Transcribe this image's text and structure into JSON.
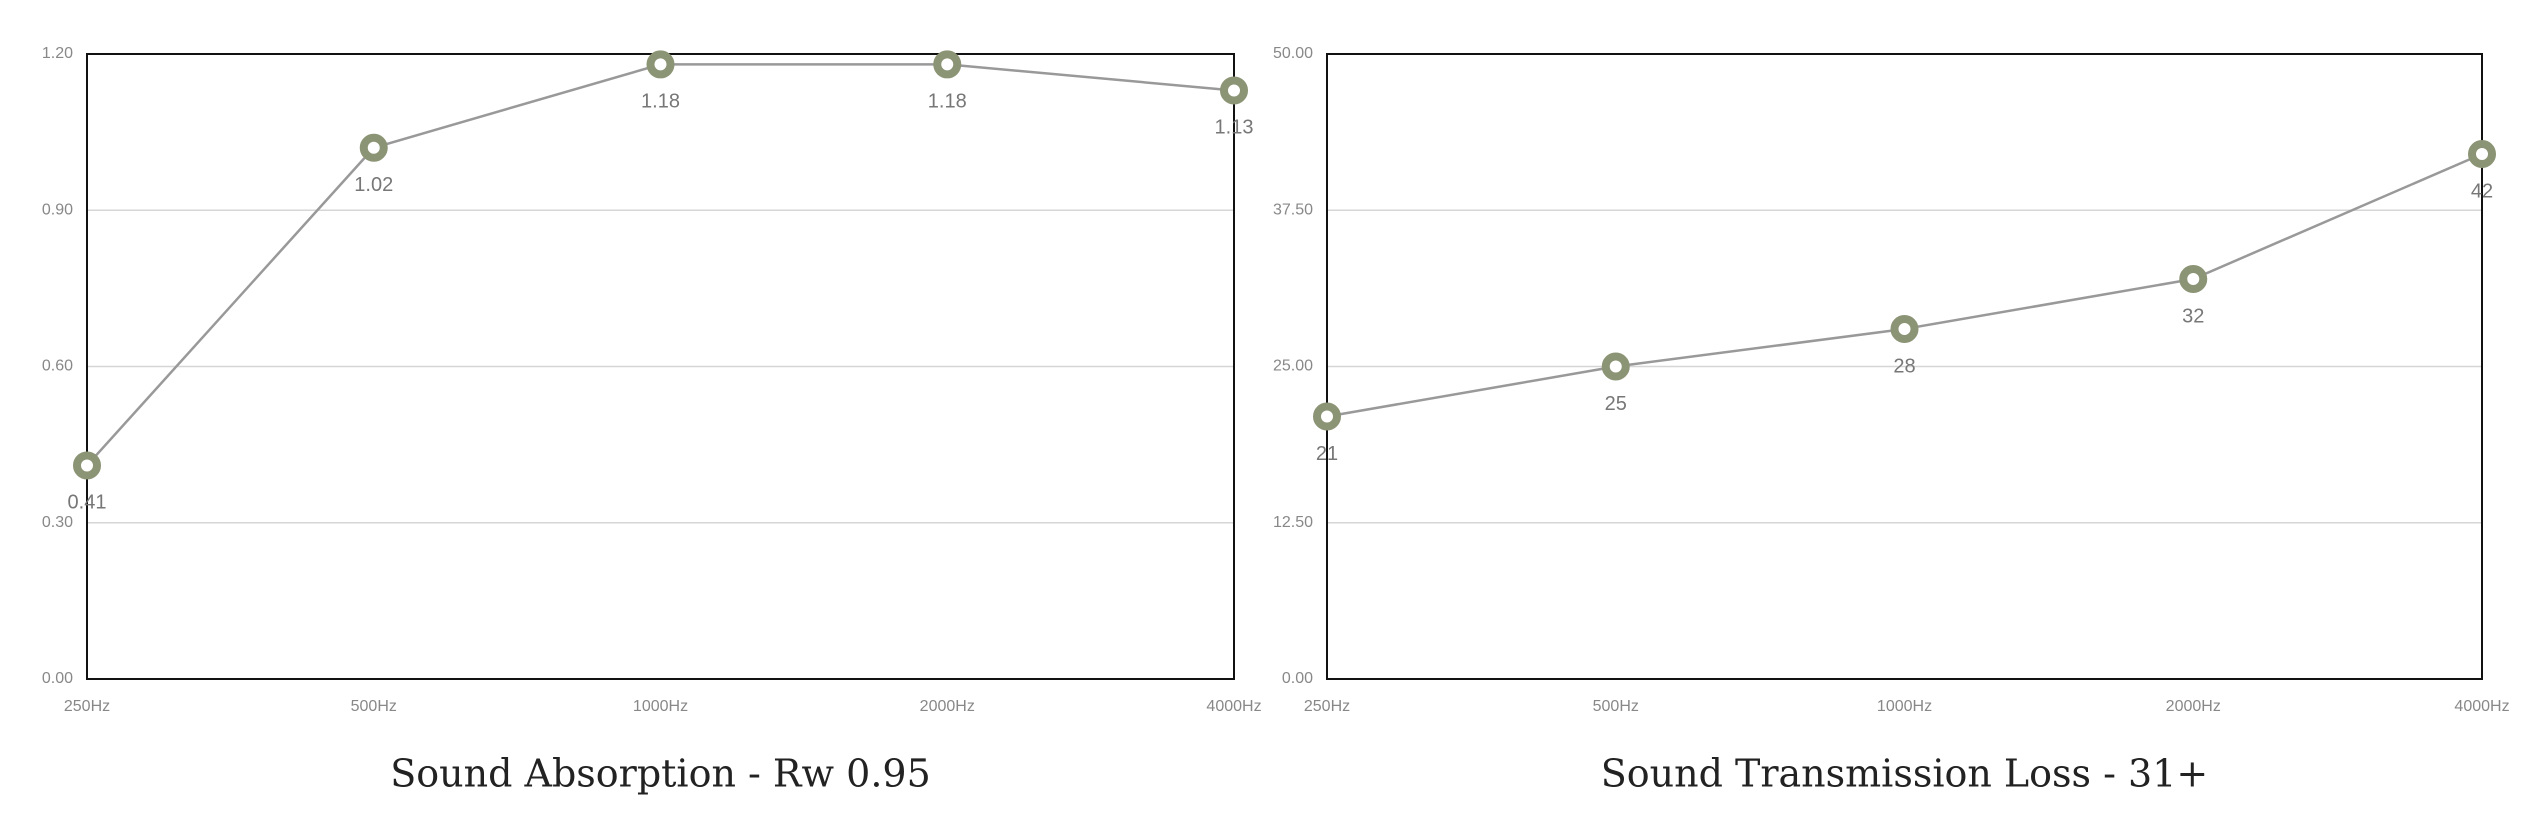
{
  "chart_data": [
    {
      "type": "line",
      "title": "Sound Absorption - Rw 0.95",
      "categories": [
        "250Hz",
        "500Hz",
        "1000Hz",
        "2000Hz",
        "4000Hz"
      ],
      "values": [
        0.41,
        1.02,
        1.18,
        1.18,
        1.13
      ],
      "color": "#8b9474",
      "line_color": "#999999",
      "ylim": [
        0,
        1.2
      ],
      "yticks": [
        {
          "value": 0,
          "label": "0.00"
        },
        {
          "value": 0.3,
          "label": "0.30"
        },
        {
          "value": 0.6,
          "label": "0.60"
        },
        {
          "value": 0.9,
          "label": "0.90"
        },
        {
          "value": 1.2,
          "label": "1.20"
        }
      ],
      "grid": true
    },
    {
      "type": "line",
      "title": "Sound Transmission Loss - 31+",
      "categories": [
        "250Hz",
        "500Hz",
        "1000Hz",
        "2000Hz",
        "4000Hz"
      ],
      "values": [
        21,
        25,
        28,
        32,
        42
      ],
      "color": "#8b9474",
      "line_color": "#999999",
      "ylim": [
        0,
        50
      ],
      "yticks": [
        {
          "value": 0,
          "label": "0.00"
        },
        {
          "value": 12.5,
          "label": "12.50"
        },
        {
          "value": 25,
          "label": "25.00"
        },
        {
          "value": 37.5,
          "label": "37.50"
        },
        {
          "value": 50,
          "label": "50.00"
        }
      ],
      "grid": true
    }
  ]
}
